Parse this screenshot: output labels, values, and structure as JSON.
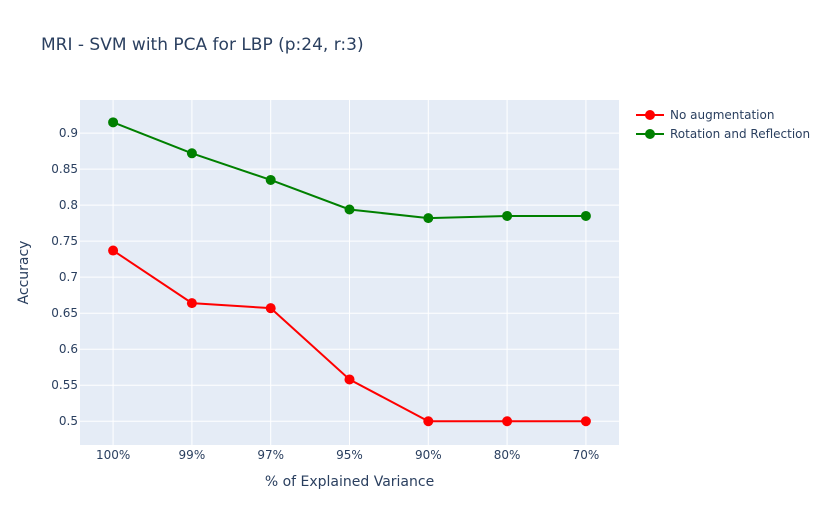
{
  "chart_data": {
    "type": "line",
    "title": "MRI - SVM with PCA for LBP (p:24, r:3)",
    "xlabel": "% of Explained Variance",
    "ylabel": "Accuracy",
    "categories": [
      "100%",
      "99%",
      "97%",
      "95%",
      "90%",
      "80%",
      "70%"
    ],
    "yticks": [
      "0.5",
      "0.55",
      "0.6",
      "0.65",
      "0.7",
      "0.75",
      "0.8",
      "0.85",
      "0.9"
    ],
    "ylim": [
      0.467,
      0.946
    ],
    "grid": true,
    "legend_position": "top-right",
    "plot_bgcolor": "#e5ecf6",
    "series": [
      {
        "name": "No augmentation",
        "color": "#ff0000",
        "values": [
          0.737,
          0.664,
          0.657,
          0.558,
          0.5,
          0.5,
          0.5
        ]
      },
      {
        "name": "Rotation and Reflection",
        "color": "#008000",
        "values": [
          0.915,
          0.872,
          0.835,
          0.794,
          0.782,
          0.785,
          0.785
        ]
      }
    ]
  }
}
